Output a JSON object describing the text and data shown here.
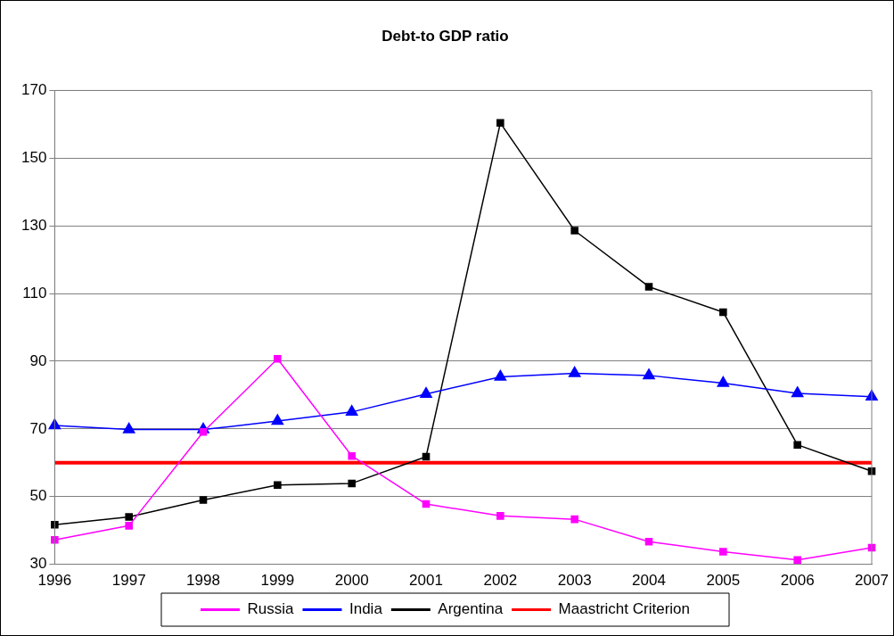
{
  "chart_data": {
    "type": "line",
    "title": "Debt-to GDP ratio",
    "categories": [
      "1996",
      "1997",
      "1998",
      "1999",
      "2000",
      "2001",
      "2002",
      "2003",
      "2004",
      "2005",
      "2006",
      "2007"
    ],
    "series": [
      {
        "name": "Russia",
        "color": "#ff00ff",
        "marker": "square",
        "values": [
          37.2,
          41.4,
          69.1,
          90.7,
          62,
          47.8,
          44.3,
          43.3,
          36.7,
          33.7,
          31.3,
          34.9
        ]
      },
      {
        "name": "India",
        "color": "#0000ff",
        "marker": "triangle",
        "values": [
          71,
          69.8,
          69.8,
          72.3,
          75,
          80.3,
          85.4,
          86.4,
          85.8,
          83.5,
          80.5,
          79.5
        ]
      },
      {
        "name": "Argentina",
        "color": "#000000",
        "marker": "square",
        "values": [
          41.7,
          44,
          49,
          53.4,
          53.9,
          61.8,
          160.4,
          128.6,
          112,
          104.5,
          65.3,
          57.5
        ]
      },
      {
        "name": "Maastricht Criterion",
        "color": "#ff0000",
        "marker": "none",
        "values": [
          60,
          60,
          60,
          60,
          60,
          60,
          60,
          60,
          60,
          60,
          60,
          60
        ]
      }
    ],
    "ylim": [
      30,
      170
    ],
    "yticks": [
      30,
      50,
      70,
      90,
      110,
      130,
      150,
      170
    ],
    "grid": "y",
    "legend": "bottom",
    "line_style": "solid"
  }
}
